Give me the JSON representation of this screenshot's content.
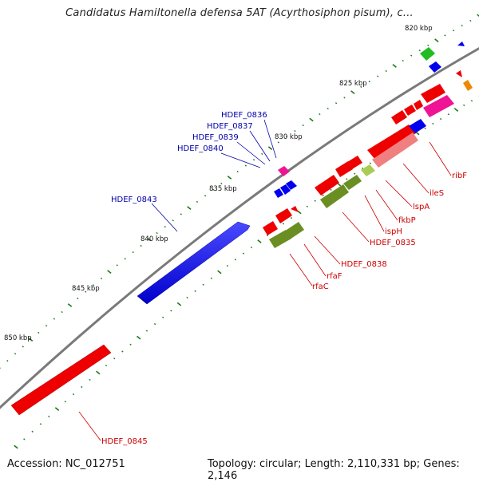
{
  "header": {
    "title": "Candidatus Hamiltonella defensa 5AT (Acyrthosiphon pisum), c..."
  },
  "footer": {
    "accession": "Accession: NC_012751",
    "topology": "Topology: circular; Length: 2,110,331 bp; Genes: 2,146"
  },
  "scale": {
    "ticks": [
      "820 kbp",
      "825 kbp",
      "830 kbp",
      "835 kbp",
      "840 kbp",
      "845 kbp",
      "850 kbp"
    ]
  },
  "genes": {
    "blue_labels": [
      "HDEF_0836",
      "HDEF_0837",
      "HDEF_0839",
      "HDEF_0840",
      "HDEF_0843"
    ],
    "red_labels": [
      "ribF",
      "ileS",
      "lspA",
      "fkbP",
      "ispH",
      "HDEF_0835",
      "HDEF_0838",
      "rfaF",
      "rfaC",
      "HDEF_0845"
    ]
  },
  "colors": {
    "backbone": "#7a7a7a",
    "forward_strand": "#0000ee",
    "reverse_strand": "#ee0000",
    "olive": "#6b8e23",
    "magenta": "#ee1493",
    "green": "#22bb22",
    "salmon": "#f08080",
    "tick": "#1a7a1a"
  }
}
